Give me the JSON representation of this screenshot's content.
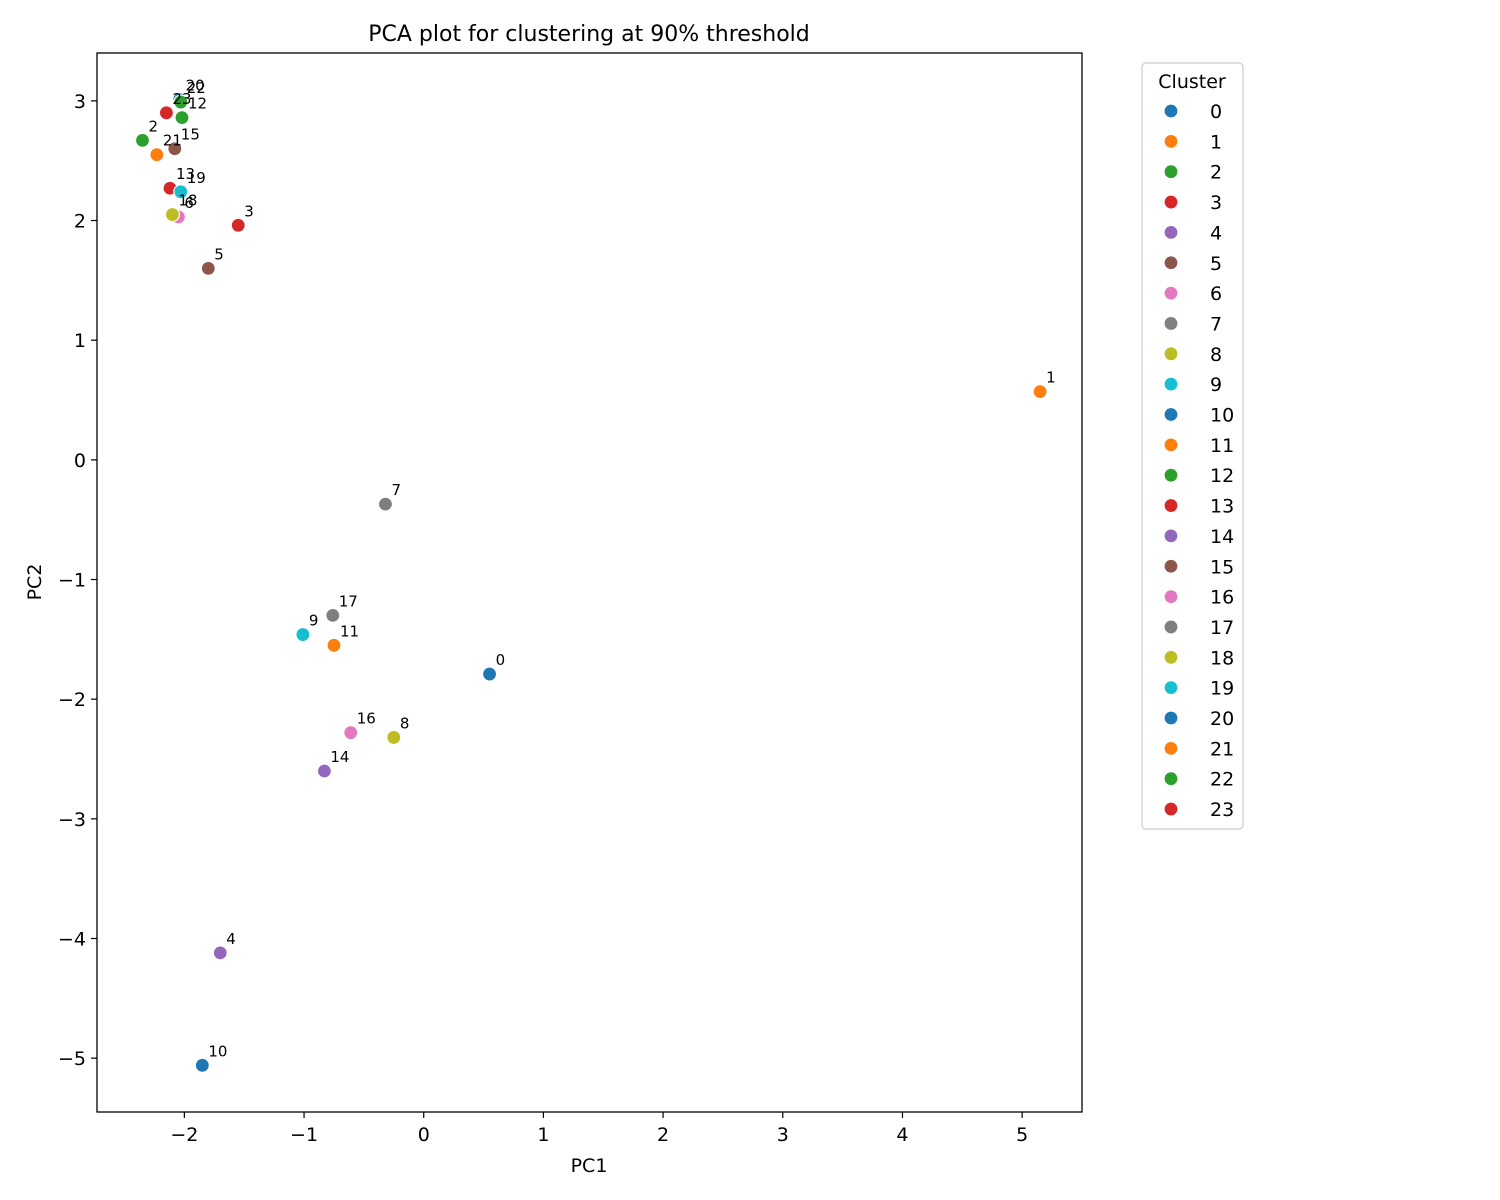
{
  "chart_data": {
    "type": "scatter",
    "title": "PCA plot for clustering at 90% threshold",
    "xlabel": "PC1",
    "ylabel": "PC2",
    "xlim": [
      -2.73,
      5.5
    ],
    "ylim": [
      -5.45,
      3.4
    ],
    "xticks": [
      -2,
      -1,
      0,
      1,
      2,
      3,
      4,
      5
    ],
    "yticks": [
      -5,
      -4,
      -3,
      -2,
      -1,
      0,
      1,
      2,
      3
    ],
    "xtick_labels": [
      "−2",
      "−1",
      "0",
      "1",
      "2",
      "3",
      "4",
      "5"
    ],
    "ytick_labels": [
      "−5",
      "−4",
      "−3",
      "−2",
      "−1",
      "0",
      "1",
      "2",
      "3"
    ],
    "grid": false,
    "legend": {
      "title": "Cluster",
      "placement": "outside-right-top",
      "entries": [
        "0",
        "1",
        "2",
        "3",
        "4",
        "5",
        "6",
        "7",
        "8",
        "9",
        "10",
        "11",
        "12",
        "13",
        "14",
        "15",
        "16",
        "17",
        "18",
        "19",
        "20",
        "21",
        "22",
        "23"
      ]
    },
    "colors": [
      "#1f77b4",
      "#ff7f0e",
      "#2ca02c",
      "#d62728",
      "#9467bd",
      "#8c564b",
      "#e377c2",
      "#7f7f7f",
      "#bcbd22",
      "#17becf"
    ],
    "points": [
      {
        "label": "0",
        "cluster": 0,
        "x": 0.55,
        "y": -1.79
      },
      {
        "label": "1",
        "cluster": 1,
        "x": 5.15,
        "y": 0.57
      },
      {
        "label": "2",
        "cluster": 2,
        "x": -2.35,
        "y": 2.67
      },
      {
        "label": "3",
        "cluster": 3,
        "x": -1.55,
        "y": 1.96
      },
      {
        "label": "4",
        "cluster": 4,
        "x": -1.7,
        "y": -4.12
      },
      {
        "label": "5",
        "cluster": 5,
        "x": -1.8,
        "y": 1.6
      },
      {
        "label": "6",
        "cluster": 6,
        "x": -2.05,
        "y": 2.03
      },
      {
        "label": "7",
        "cluster": 7,
        "x": -0.32,
        "y": -0.37
      },
      {
        "label": "8",
        "cluster": 8,
        "x": -0.25,
        "y": -2.32
      },
      {
        "label": "9",
        "cluster": 9,
        "x": -1.01,
        "y": -1.46
      },
      {
        "label": "10",
        "cluster": 10,
        "x": -1.85,
        "y": -5.06
      },
      {
        "label": "11",
        "cluster": 11,
        "x": -0.75,
        "y": -1.55
      },
      {
        "label": "12",
        "cluster": 12,
        "x": -2.02,
        "y": 2.86
      },
      {
        "label": "13",
        "cluster": 13,
        "x": -2.12,
        "y": 2.27
      },
      {
        "label": "14",
        "cluster": 14,
        "x": -0.83,
        "y": -2.6
      },
      {
        "label": "15",
        "cluster": 15,
        "x": -2.08,
        "y": 2.6
      },
      {
        "label": "16",
        "cluster": 16,
        "x": -0.61,
        "y": -2.28
      },
      {
        "label": "17",
        "cluster": 17,
        "x": -0.76,
        "y": -1.3
      },
      {
        "label": "18",
        "cluster": 18,
        "x": -2.1,
        "y": 2.05
      },
      {
        "label": "19",
        "cluster": 19,
        "x": -2.03,
        "y": 2.24
      },
      {
        "label": "20",
        "cluster": 20,
        "x": -2.04,
        "y": 3.01
      },
      {
        "label": "21",
        "cluster": 21,
        "x": -2.23,
        "y": 2.55
      },
      {
        "label": "22",
        "cluster": 22,
        "x": -2.03,
        "y": 2.99
      },
      {
        "label": "23",
        "cluster": 23,
        "x": -2.15,
        "y": 2.9
      }
    ]
  }
}
